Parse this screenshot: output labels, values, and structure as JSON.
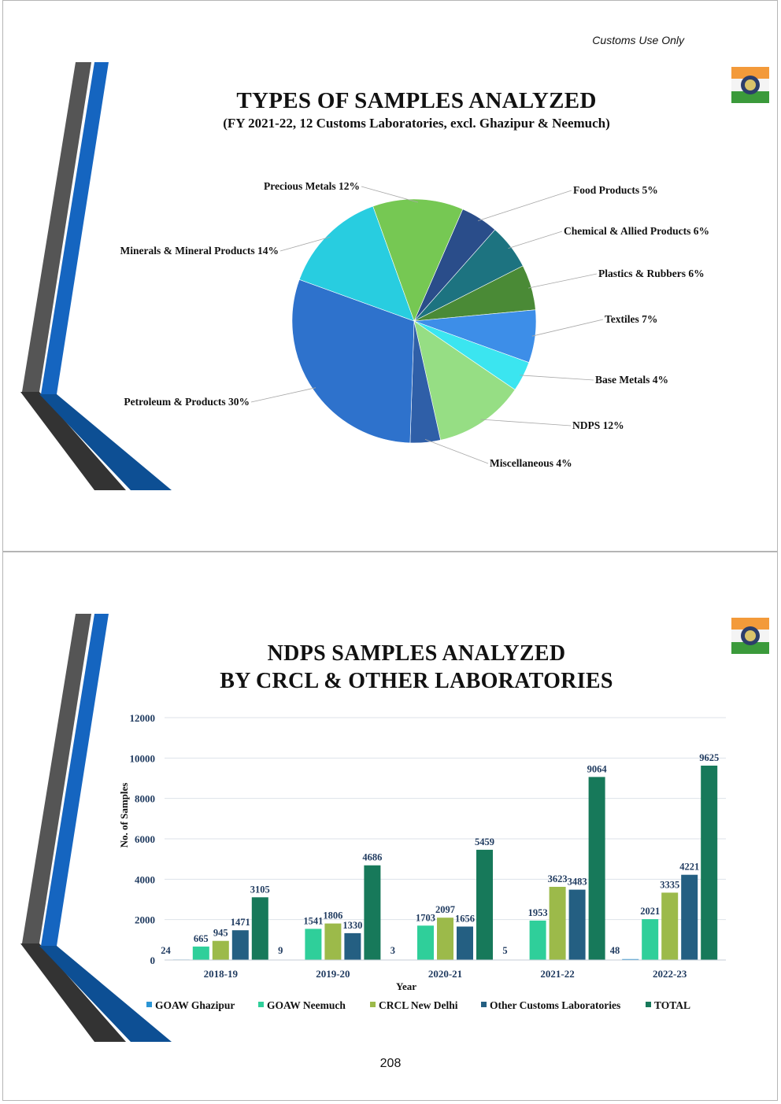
{
  "header_note": "Customs Use Only",
  "page_number": "208",
  "slide1": {
    "title": "TYPES OF SAMPLES ANALYZED",
    "subtitle": "(FY 2021-22, 12 Customs Laboratories, excl. Ghazipur & Neemuch)"
  },
  "slide2": {
    "title_line1": "NDPS SAMPLES ANALYZED",
    "title_line2": "BY CRCL & OTHER LABORATORIES"
  },
  "colors": {
    "deco_gray": "#555555",
    "deco_blue": "#1565c0",
    "deco_dark": "#333333",
    "deco_navy": "#0d4f94",
    "bar_value_label": "#1f3a5f"
  },
  "chart_data": [
    {
      "type": "pie",
      "slices": [
        {
          "label": "Food Products 5%",
          "value": 5,
          "color": "#2a4d8a"
        },
        {
          "label": "Chemical & Allied Products 6%",
          "value": 6,
          "color": "#1d7380"
        },
        {
          "label": "Plastics & Rubbers 6%",
          "value": 6,
          "color": "#4a8a36"
        },
        {
          "label": "Textiles 7%",
          "value": 7,
          "color": "#3d8ee8"
        },
        {
          "label": "Base Metals 4%",
          "value": 4,
          "color": "#3be5f0"
        },
        {
          "label": "NDPS 12%",
          "value": 12,
          "color": "#96de84"
        },
        {
          "label": "Miscellaneous 4%",
          "value": 4,
          "color": "#2f5fa8"
        },
        {
          "label": "Petroleum & Products 30%",
          "value": 30,
          "color": "#2e72cc"
        },
        {
          "label": "Minerals & Mineral Products 14%",
          "value": 14,
          "color": "#28cde0"
        },
        {
          "label": "Precious Metals 12%",
          "value": 12,
          "color": "#76c853"
        }
      ]
    },
    {
      "type": "bar",
      "categories": [
        "2018-19",
        "2019-20",
        "2020-21",
        "2021-22",
        "2022-23"
      ],
      "series": [
        {
          "name": "GOAW Ghazipur",
          "values": [
            24,
            9,
            3,
            5,
            48
          ],
          "color": "#2b95d4"
        },
        {
          "name": "GOAW Neemuch",
          "values": [
            665,
            1541,
            1703,
            1953,
            2021
          ],
          "color": "#2fcf9a"
        },
        {
          "name": "CRCL New Delhi",
          "values": [
            945,
            1806,
            2097,
            3623,
            3335
          ],
          "color": "#9cba4a"
        },
        {
          "name": "Other Customs Laboratories",
          "values": [
            1471,
            1330,
            1656,
            3483,
            4221
          ],
          "color": "#245f82"
        },
        {
          "name": "TOTAL",
          "values": [
            3105,
            4686,
            5459,
            9064,
            9625
          ],
          "color": "#17795a"
        }
      ],
      "yticks": [
        "0",
        "2000",
        "4000",
        "6000",
        "8000",
        "10000",
        "12000"
      ],
      "ylim": [
        0,
        12000
      ],
      "xlabel": "Year",
      "ylabel": "No. of Samples",
      "grid": true,
      "legend_position": "bottom"
    }
  ]
}
